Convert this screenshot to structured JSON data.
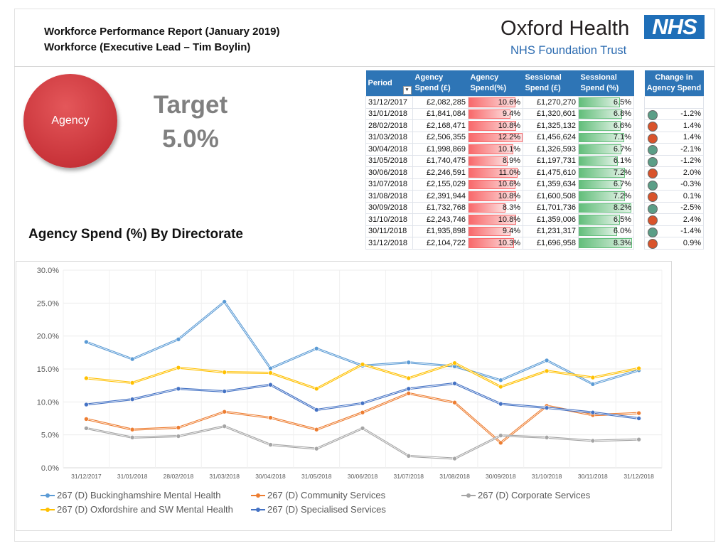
{
  "header": {
    "title_line1": "Workforce Performance Report (January 2019)",
    "title_line2": "Workforce (Executive Lead – Tim Boylin)"
  },
  "logo": {
    "name": "Oxford Health",
    "subtitle": "NHS Foundation Trust",
    "badge": "NHS",
    "badge_color": "#1f6fb8"
  },
  "kpi": {
    "circle_label": "Agency",
    "target_label": "Target",
    "target_value": "5.0%",
    "circle_color": "#c9343a"
  },
  "section_title": "Agency Spend (%) By Directorate",
  "table": {
    "headers": [
      "Period",
      "Agency Spend (£)",
      "Agency Spend(%)",
      "Sessional Spend (£)",
      "Sessional Spend (%)",
      "Change in Agency Spend"
    ],
    "header_lines": [
      [
        "Period"
      ],
      [
        "Agency",
        "Spend (£)"
      ],
      [
        "Agency",
        "Spend(%)"
      ],
      [
        "Sessional",
        "Spend (£)"
      ],
      [
        "Sessional",
        "Spend (%)"
      ],
      [
        "Change in",
        "Agency Spend"
      ]
    ],
    "status_colors": {
      "down": "#5b9e87",
      "up": "#d9532b"
    },
    "rows": [
      {
        "period": "31/12/2017",
        "agency": "£2,082,285",
        "agency_pct": "10.6%",
        "sessional": "£1,270,270",
        "sessional_pct": "6.5%",
        "change": "",
        "status": ""
      },
      {
        "period": "31/01/2018",
        "agency": "£1,841,084",
        "agency_pct": "9.4%",
        "sessional": "£1,320,601",
        "sessional_pct": "6.8%",
        "change": "-1.2%",
        "status": "down"
      },
      {
        "period": "28/02/2018",
        "agency": "£2,168,471",
        "agency_pct": "10.8%",
        "sessional": "£1,325,132",
        "sessional_pct": "6.6%",
        "change": "1.4%",
        "status": "up"
      },
      {
        "period": "31/03/2018",
        "agency": "£2,506,355",
        "agency_pct": "12.2%",
        "sessional": "£1,456,624",
        "sessional_pct": "7.1%",
        "change": "1.4%",
        "status": "up"
      },
      {
        "period": "30/04/2018",
        "agency": "£1,998,869",
        "agency_pct": "10.1%",
        "sessional": "£1,326,593",
        "sessional_pct": "6.7%",
        "change": "-2.1%",
        "status": "down"
      },
      {
        "period": "31/05/2018",
        "agency": "£1,740,475",
        "agency_pct": "8.9%",
        "sessional": "£1,197,731",
        "sessional_pct": "6.1%",
        "change": "-1.2%",
        "status": "down"
      },
      {
        "period": "30/06/2018",
        "agency": "£2,246,591",
        "agency_pct": "11.0%",
        "sessional": "£1,475,610",
        "sessional_pct": "7.2%",
        "change": "2.0%",
        "status": "up"
      },
      {
        "period": "31/07/2018",
        "agency": "£2,155,029",
        "agency_pct": "10.6%",
        "sessional": "£1,359,634",
        "sessional_pct": "6.7%",
        "change": "-0.3%",
        "status": "down"
      },
      {
        "period": "31/08/2018",
        "agency": "£2,391,944",
        "agency_pct": "10.8%",
        "sessional": "£1,600,508",
        "sessional_pct": "7.2%",
        "change": "0.1%",
        "status": "up"
      },
      {
        "period": "30/09/2018",
        "agency": "£1,732,768",
        "agency_pct": "8.3%",
        "sessional": "£1,701,736",
        "sessional_pct": "8.2%",
        "change": "-2.5%",
        "status": "down"
      },
      {
        "period": "31/10/2018",
        "agency": "£2,243,746",
        "agency_pct": "10.8%",
        "sessional": "£1,359,006",
        "sessional_pct": "6.5%",
        "change": "2.4%",
        "status": "up"
      },
      {
        "period": "30/11/2018",
        "agency": "£1,935,898",
        "agency_pct": "9.4%",
        "sessional": "£1,231,317",
        "sessional_pct": "6.0%",
        "change": "-1.4%",
        "status": "down"
      },
      {
        "period": "31/12/2018",
        "agency": "£2,104,722",
        "agency_pct": "10.3%",
        "sessional": "£1,696,958",
        "sessional_pct": "8.3%",
        "change": "0.9%",
        "status": "up"
      }
    ]
  },
  "chart_data": {
    "type": "line",
    "title": "",
    "xlabel": "",
    "ylabel": "",
    "ylim": [
      0,
      30
    ],
    "yticks": [
      "0.0%",
      "5.0%",
      "10.0%",
      "15.0%",
      "20.0%",
      "25.0%",
      "30.0%"
    ],
    "grid": true,
    "legend_position": "bottom",
    "categories": [
      "31/12/2017",
      "31/01/2018",
      "28/02/2018",
      "31/03/2018",
      "30/04/2018",
      "31/05/2018",
      "30/06/2018",
      "31/07/2018",
      "31/08/2018",
      "30/09/2018",
      "31/10/2018",
      "30/11/2018",
      "31/12/2018"
    ],
    "series": [
      {
        "name": "267 (D) Buckinghamshire Mental Health",
        "color": "#5b9bd5",
        "values": [
          19.1,
          16.5,
          19.5,
          25.2,
          15.1,
          18.1,
          15.5,
          16.0,
          15.4,
          13.3,
          16.3,
          12.7,
          14.8
        ]
      },
      {
        "name": "267 (D) Community Services",
        "color": "#ed7d31",
        "values": [
          7.4,
          5.8,
          6.1,
          8.5,
          7.6,
          5.8,
          8.4,
          11.3,
          9.9,
          3.8,
          9.4,
          8.0,
          8.3
        ]
      },
      {
        "name": "267 (D) Corporate Services",
        "color": "#a5a5a5",
        "values": [
          6.0,
          4.6,
          4.8,
          6.3,
          3.5,
          2.9,
          6.0,
          1.8,
          1.4,
          4.9,
          4.6,
          4.1,
          4.3
        ]
      },
      {
        "name": "267 (D) Oxfordshire and SW Mental Health",
        "color": "#ffc000",
        "values": [
          13.6,
          12.9,
          15.2,
          14.5,
          14.4,
          12.0,
          15.7,
          13.6,
          15.9,
          12.3,
          14.7,
          13.7,
          15.1
        ]
      },
      {
        "name": "267 (D) Specialised Services",
        "color": "#4472c4",
        "values": [
          9.6,
          10.4,
          12.0,
          11.6,
          12.6,
          8.8,
          9.8,
          12.0,
          12.8,
          9.7,
          9.1,
          8.4,
          7.5
        ]
      }
    ]
  }
}
